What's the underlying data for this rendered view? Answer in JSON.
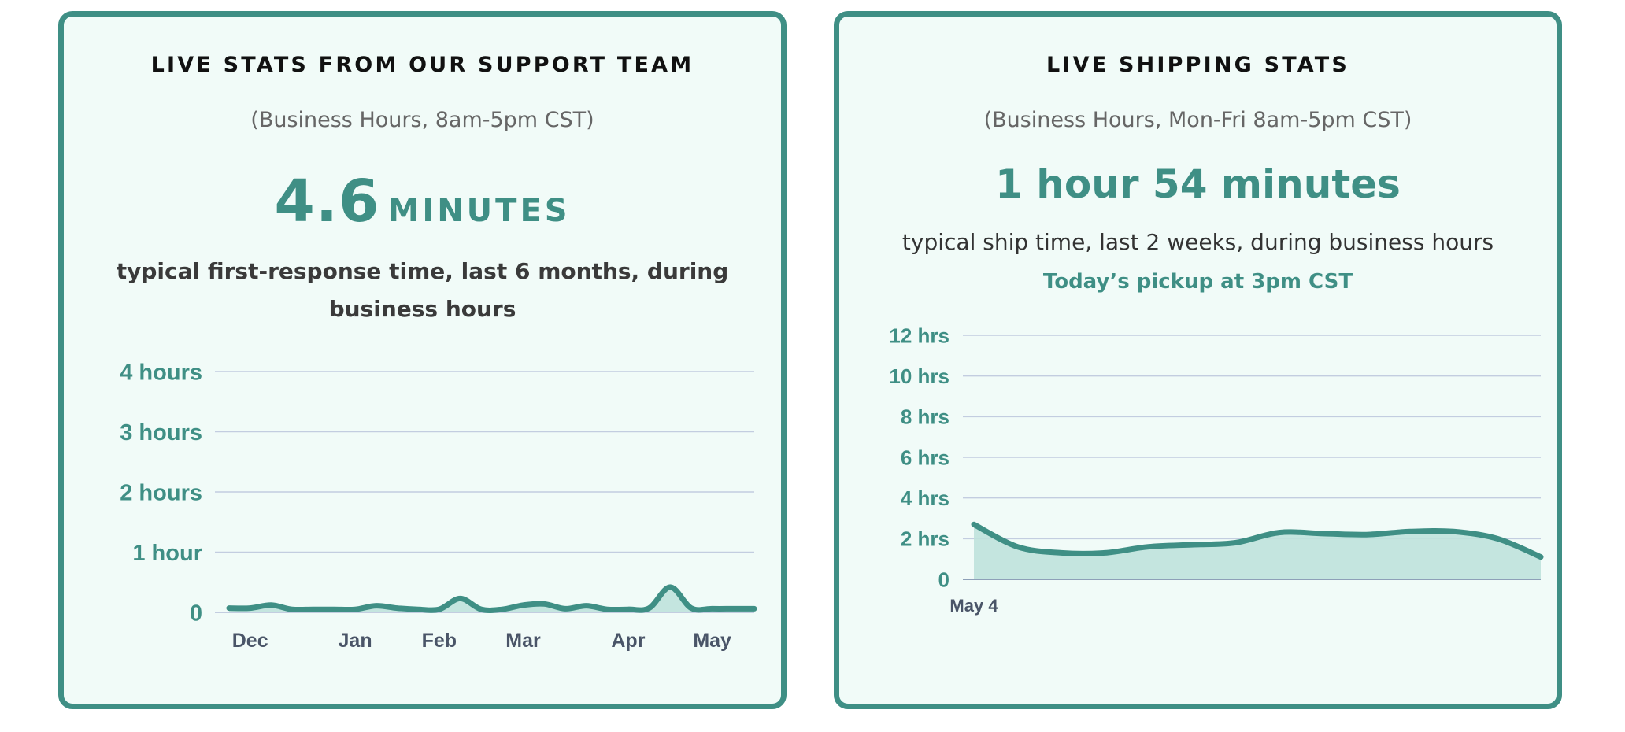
{
  "support": {
    "title": "LIVE STATS FROM OUR SUPPORT TEAM",
    "subtitle": "(Business Hours, 8am-5pm CST)",
    "stat_value": "4.6",
    "stat_unit": "MINUTES",
    "description": "typical first-response time, last 6 months, during business hours"
  },
  "shipping": {
    "title": "LIVE SHIPPING STATS",
    "subtitle": "(Business Hours, Mon-Fri 8am-5pm CST)",
    "stat": "1 hour 54 minutes",
    "description": "typical ship time, last 2 weeks, during business hours",
    "pickup": "Today’s pickup at 3pm CST"
  },
  "colors": {
    "accent": "#3f8f85",
    "area_fill": "#bfe2dc",
    "grid": "#c3cde0",
    "card_background": "#f1fbf8"
  },
  "chart_data": [
    {
      "type": "area",
      "ylabel": "",
      "xlabel": "",
      "ylim": [
        0,
        4
      ],
      "yticks": [
        0,
        1,
        2,
        3,
        4
      ],
      "ytick_labels": [
        "0",
        "1 hour",
        "2 hours",
        "3 hours",
        "4 hours"
      ],
      "xticks": [
        0.5,
        3.0,
        5.0,
        7.0,
        9.5,
        11.5
      ],
      "xtick_labels": [
        "Dec",
        "Jan",
        "Feb",
        "Mar",
        "Apr",
        "May"
      ],
      "xlim": [
        0,
        12.5
      ],
      "grid": true,
      "series": [
        {
          "x": [
            0,
            0.5,
            1.0,
            1.5,
            2.0,
            2.5,
            3.0,
            3.5,
            4.0,
            4.5,
            5.0,
            5.5,
            6.0,
            6.5,
            7.0,
            7.5,
            8.0,
            8.5,
            9.0,
            9.5,
            10.0,
            10.5,
            11.0,
            11.5,
            12.0,
            12.5
          ],
          "y": [
            0.07,
            0.07,
            0.12,
            0.05,
            0.05,
            0.05,
            0.05,
            0.11,
            0.07,
            0.05,
            0.05,
            0.23,
            0.05,
            0.05,
            0.12,
            0.14,
            0.06,
            0.11,
            0.05,
            0.05,
            0.07,
            0.42,
            0.07,
            0.06,
            0.06,
            0.06
          ]
        }
      ]
    },
    {
      "type": "area",
      "ylabel": "",
      "xlabel": "",
      "ylim": [
        0,
        12
      ],
      "yticks": [
        0,
        2,
        4,
        6,
        8,
        10,
        12
      ],
      "ytick_labels": [
        "0",
        "2 hrs",
        "4 hrs",
        "6 hrs",
        "8 hrs",
        "10 hrs",
        "12 hrs"
      ],
      "xticks": [
        0
      ],
      "xtick_labels": [
        "May 4"
      ],
      "xlim": [
        0,
        13
      ],
      "grid": true,
      "series": [
        {
          "x": [
            0,
            1,
            2,
            3,
            4,
            5,
            6,
            7,
            8,
            9,
            10,
            11,
            12,
            13
          ],
          "y": [
            2.7,
            1.6,
            1.3,
            1.3,
            1.6,
            1.7,
            1.8,
            2.3,
            2.25,
            2.2,
            2.35,
            2.35,
            2.0,
            1.1
          ]
        }
      ]
    }
  ]
}
